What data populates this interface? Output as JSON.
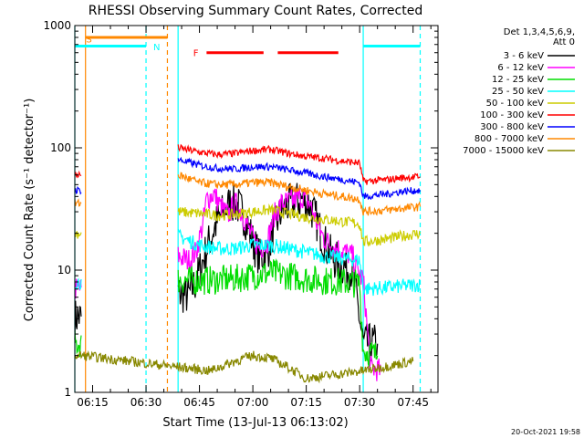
{
  "chart_data": {
    "type": "line",
    "title": "RHESSI Observing Summary Count Rates, Corrected",
    "xlabel": "Start Time (13-Jul-13 06:13:02)",
    "ylabel": "Corrected Count Rate (s⁻¹ detector⁻¹)",
    "y_scale": "log",
    "ylim": [
      1,
      1000
    ],
    "x_time_range": [
      "06:10",
      "07:52"
    ],
    "x_ticks": [
      "06:15",
      "06:30",
      "06:45",
      "07:00",
      "07:15",
      "07:30",
      "07:45"
    ],
    "y_ticks": [
      "1",
      "10",
      "100",
      "1000"
    ],
    "grid": false,
    "legend_header": [
      "Det 1,3,4,5,6,9,",
      "Att 0"
    ],
    "legend_position": "right",
    "series": [
      {
        "name": "3 - 6 keV",
        "color": "#000000",
        "points": [
          [
            "06:10",
            4
          ],
          [
            "06:11",
            4.2
          ],
          [
            "06:12",
            4.0
          ],
          [
            "06:39",
            6.5
          ],
          [
            "06:42",
            6.2
          ],
          [
            "06:44",
            8
          ],
          [
            "06:46",
            12
          ],
          [
            "06:48",
            18
          ],
          [
            "06:50",
            25
          ],
          [
            "06:52",
            31
          ],
          [
            "06:54",
            36
          ],
          [
            "06:56",
            33
          ],
          [
            "06:58",
            26
          ],
          [
            "07:00",
            17
          ],
          [
            "07:02",
            12.5
          ],
          [
            "07:04",
            14
          ],
          [
            "07:06",
            22
          ],
          [
            "07:08",
            30
          ],
          [
            "07:10",
            34
          ],
          [
            "07:12",
            36
          ],
          [
            "07:14",
            38
          ],
          [
            "07:16",
            34
          ],
          [
            "07:18",
            25
          ],
          [
            "07:20",
            17
          ],
          [
            "07:22",
            13
          ],
          [
            "07:24",
            11.5
          ],
          [
            "07:26",
            10.5
          ],
          [
            "07:28",
            10
          ],
          [
            "07:31",
            2.5
          ],
          [
            "07:35",
            2.5
          ]
        ]
      },
      {
        "name": "6 - 12 keV",
        "color": "#ff00ff",
        "points": [
          [
            "06:10",
            7
          ],
          [
            "06:11",
            7
          ],
          [
            "06:12",
            7
          ],
          [
            "06:39",
            13
          ],
          [
            "06:42",
            12
          ],
          [
            "06:44",
            14
          ],
          [
            "06:46",
            24
          ],
          [
            "06:47",
            38
          ],
          [
            "06:49",
            42
          ],
          [
            "06:51",
            33
          ],
          [
            "06:53",
            28
          ],
          [
            "06:55",
            35
          ],
          [
            "06:56",
            32
          ],
          [
            "06:58",
            25
          ],
          [
            "07:00",
            18
          ],
          [
            "07:02",
            15
          ],
          [
            "07:04",
            17
          ],
          [
            "07:06",
            28
          ],
          [
            "07:08",
            35
          ],
          [
            "07:10",
            36
          ],
          [
            "07:12",
            38
          ],
          [
            "07:14",
            40
          ],
          [
            "07:16",
            35
          ],
          [
            "07:18",
            24
          ],
          [
            "07:20",
            18
          ],
          [
            "07:22",
            16
          ],
          [
            "07:24",
            15
          ],
          [
            "07:26",
            14
          ],
          [
            "07:28",
            13
          ],
          [
            "07:30",
            9
          ],
          [
            "07:31",
            8.5
          ],
          [
            "07:33",
            1.6
          ],
          [
            "07:36",
            1.5
          ]
        ]
      },
      {
        "name": "12 - 25 keV",
        "color": "#00dd00",
        "points": [
          [
            "06:10",
            2.5
          ],
          [
            "06:12",
            2.5
          ],
          [
            "06:39",
            8.3
          ],
          [
            "06:45",
            8.2
          ],
          [
            "06:50",
            8.3
          ],
          [
            "06:55",
            8.5
          ],
          [
            "07:00",
            9
          ],
          [
            "07:05",
            9.5
          ],
          [
            "07:10",
            9
          ],
          [
            "07:15",
            8.5
          ],
          [
            "07:20",
            8.2
          ],
          [
            "07:25",
            8
          ],
          [
            "07:29",
            7.8
          ],
          [
            "07:30",
            7.8
          ],
          [
            "07:31",
            2.2
          ],
          [
            "07:35",
            2
          ]
        ]
      },
      {
        "name": "25 - 50 keV",
        "color": "#00ffff",
        "points": [
          [
            "06:10",
            8
          ],
          [
            "06:12",
            8
          ],
          [
            "06:39",
            19
          ],
          [
            "06:45",
            16
          ],
          [
            "06:50",
            15
          ],
          [
            "06:55",
            15
          ],
          [
            "07:00",
            16
          ],
          [
            "07:05",
            16
          ],
          [
            "07:10",
            15
          ],
          [
            "07:15",
            14
          ],
          [
            "07:20",
            13
          ],
          [
            "07:25",
            12.5
          ],
          [
            "07:30",
            12
          ],
          [
            "07:31",
            7
          ],
          [
            "07:38",
            7.2
          ],
          [
            "07:42",
            7.4
          ],
          [
            "07:47",
            7.6
          ]
        ]
      },
      {
        "name": "50 - 100 keV",
        "color": "#cccc00",
        "points": [
          [
            "06:10",
            20
          ],
          [
            "06:12",
            20
          ],
          [
            "06:39",
            30
          ],
          [
            "06:45",
            29
          ],
          [
            "06:50",
            28
          ],
          [
            "06:55",
            28.5
          ],
          [
            "07:00",
            30
          ],
          [
            "07:05",
            31
          ],
          [
            "07:10",
            29
          ],
          [
            "07:15",
            27
          ],
          [
            "07:20",
            26
          ],
          [
            "07:25",
            25
          ],
          [
            "07:30",
            24
          ],
          [
            "07:31",
            17
          ],
          [
            "07:38",
            18
          ],
          [
            "07:42",
            19
          ],
          [
            "07:47",
            20
          ]
        ]
      },
      {
        "name": "100 - 300 keV",
        "color": "#ff0000",
        "points": [
          [
            "06:10",
            60
          ],
          [
            "06:12",
            60
          ],
          [
            "06:39",
            100
          ],
          [
            "06:45",
            92
          ],
          [
            "06:50",
            88
          ],
          [
            "06:55",
            90
          ],
          [
            "07:00",
            95
          ],
          [
            "07:05",
            97
          ],
          [
            "07:10",
            90
          ],
          [
            "07:15",
            85
          ],
          [
            "07:20",
            82
          ],
          [
            "07:25",
            78
          ],
          [
            "07:30",
            75
          ],
          [
            "07:31",
            53
          ],
          [
            "07:38",
            55
          ],
          [
            "07:42",
            57
          ],
          [
            "07:47",
            58
          ]
        ]
      },
      {
        "name": "300 - 800 keV",
        "color": "#0000ff",
        "points": [
          [
            "06:10",
            45
          ],
          [
            "06:12",
            45
          ],
          [
            "06:39",
            80
          ],
          [
            "06:45",
            72
          ],
          [
            "06:50",
            68
          ],
          [
            "06:55",
            67
          ],
          [
            "07:00",
            70
          ],
          [
            "07:05",
            70
          ],
          [
            "07:10",
            66
          ],
          [
            "07:15",
            62
          ],
          [
            "07:20",
            58
          ],
          [
            "07:25",
            55
          ],
          [
            "07:30",
            52
          ],
          [
            "07:31",
            40
          ],
          [
            "07:38",
            42
          ],
          [
            "07:42",
            44
          ],
          [
            "07:47",
            45
          ]
        ]
      },
      {
        "name": "800 - 7000 keV",
        "color": "#ff8800",
        "points": [
          [
            "06:10",
            35
          ],
          [
            "06:12",
            35
          ],
          [
            "06:39",
            60
          ],
          [
            "06:45",
            52
          ],
          [
            "06:50",
            50
          ],
          [
            "06:55",
            50
          ],
          [
            "07:00",
            52
          ],
          [
            "07:05",
            52
          ],
          [
            "07:10",
            48
          ],
          [
            "07:15",
            45
          ],
          [
            "07:20",
            42
          ],
          [
            "07:25",
            40
          ],
          [
            "07:30",
            38
          ],
          [
            "07:31",
            30
          ],
          [
            "07:38",
            31
          ],
          [
            "07:42",
            32
          ],
          [
            "07:47",
            33
          ]
        ]
      },
      {
        "name": "7000 - 15000 keV",
        "color": "#888800",
        "points": [
          [
            "06:10",
            2
          ],
          [
            "06:12",
            2
          ],
          [
            "06:48",
            1.5
          ],
          [
            "06:55",
            1.8
          ],
          [
            "07:00",
            2.0
          ],
          [
            "07:05",
            1.9
          ],
          [
            "07:10",
            1.6
          ],
          [
            "07:15",
            1.3
          ],
          [
            "07:31",
            1.5
          ],
          [
            "07:45",
            1.8
          ]
        ]
      }
    ],
    "annotations": {
      "labels": [
        {
          "text": "S",
          "color": "#ff8800"
        },
        {
          "text": "N",
          "color": "#00ffff"
        },
        {
          "text": "F",
          "color": "#ff0000"
        }
      ],
      "saa_bar": {
        "from": "06:13",
        "to": "06:36",
        "value": 800,
        "color": "#ff8800"
      },
      "night_bars": [
        {
          "from": "06:10",
          "to": "06:30",
          "value": 680
        },
        {
          "from": "07:31",
          "to": "07:47",
          "value": 680
        }
      ],
      "flare_bars": [
        {
          "from": "06:47",
          "to": "07:03",
          "value": 600
        },
        {
          "from": "07:07",
          "to": "07:24",
          "value": 600
        }
      ],
      "vlines": [
        {
          "time": "06:10",
          "color": "#00ffff",
          "dash": false
        },
        {
          "time": "06:13",
          "color": "#ff8800",
          "dash": false
        },
        {
          "time": "06:30",
          "color": "#00ffff",
          "dash": true
        },
        {
          "time": "06:36",
          "color": "#ff8800",
          "dash": true
        },
        {
          "time": "06:39",
          "color": "#00ffff",
          "dash": false
        },
        {
          "time": "07:31",
          "color": "#00ffff",
          "dash": false
        },
        {
          "time": "07:47",
          "color": "#00ffff",
          "dash": true
        }
      ]
    },
    "footer": "20-Oct-2021 19:58"
  }
}
